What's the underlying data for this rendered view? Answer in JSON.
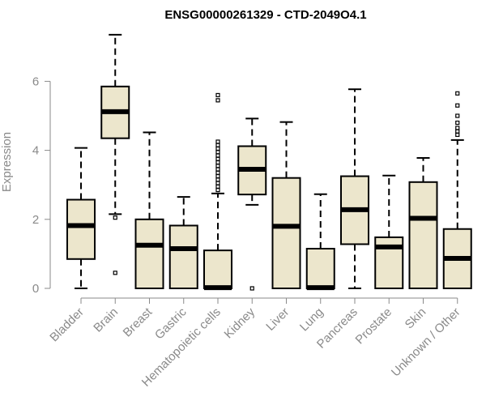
{
  "chart_data": {
    "type": "boxplot",
    "title": "ENSG00000261329 - CTD-2049O4.1",
    "ylabel": "Expression",
    "xlabel": "",
    "ylim": [
      0,
      7.4
    ],
    "yticks": [
      0,
      2,
      4,
      6
    ],
    "box_fill": "#ece6cc",
    "line_color": "#000000",
    "axis_color": "#8a8a8a",
    "categories": [
      "Bladder",
      "Brain",
      "Breast",
      "Gastric",
      "Hematopoietic cells",
      "Kidney",
      "Liver",
      "Lung",
      "Pancreas",
      "Prostate",
      "Skin",
      "Unknown / Other"
    ],
    "boxes": [
      {
        "whisker_low": 0.0,
        "q1": 0.85,
        "median": 1.82,
        "q3": 2.57,
        "whisker_high": 4.07,
        "outliers": []
      },
      {
        "whisker_low": 2.15,
        "q1": 4.35,
        "median": 5.12,
        "q3": 5.85,
        "whisker_high": 7.35,
        "outliers": [
          2.05,
          0.45
        ]
      },
      {
        "whisker_low": 0.0,
        "q1": 0.0,
        "median": 1.25,
        "q3": 2.0,
        "whisker_high": 4.52,
        "outliers": []
      },
      {
        "whisker_low": 0.0,
        "q1": 0.0,
        "median": 1.15,
        "q3": 1.82,
        "whisker_high": 2.65,
        "outliers": []
      },
      {
        "whisker_low": 0.0,
        "q1": 0.0,
        "median": 0.02,
        "q3": 1.1,
        "whisker_high": 2.75,
        "outliers": [
          2.85,
          2.95,
          3.05,
          3.15,
          3.25,
          3.35,
          3.45,
          3.55,
          3.65,
          3.75,
          3.85,
          3.95,
          4.05,
          4.15,
          4.25,
          5.45,
          5.6
        ]
      },
      {
        "whisker_low": 2.42,
        "q1": 2.72,
        "median": 3.45,
        "q3": 4.12,
        "whisker_high": 4.92,
        "outliers": [
          0.0
        ]
      },
      {
        "whisker_low": 0.0,
        "q1": 0.0,
        "median": 1.8,
        "q3": 3.2,
        "whisker_high": 4.82,
        "outliers": []
      },
      {
        "whisker_low": 0.0,
        "q1": 0.0,
        "median": 0.02,
        "q3": 1.15,
        "whisker_high": 2.73,
        "outliers": []
      },
      {
        "whisker_low": 0.0,
        "q1": 1.28,
        "median": 2.28,
        "q3": 3.25,
        "whisker_high": 5.77,
        "outliers": []
      },
      {
        "whisker_low": 0.0,
        "q1": 0.0,
        "median": 1.2,
        "q3": 1.48,
        "whisker_high": 3.27,
        "outliers": []
      },
      {
        "whisker_low": 0.0,
        "q1": 0.0,
        "median": 2.03,
        "q3": 3.08,
        "whisker_high": 3.78,
        "outliers": []
      },
      {
        "whisker_low": 0.0,
        "q1": 0.0,
        "median": 0.87,
        "q3": 1.72,
        "whisker_high": 4.3,
        "outliers": [
          4.45,
          4.55,
          4.65,
          4.8,
          5.0,
          5.3,
          5.65
        ]
      }
    ]
  }
}
